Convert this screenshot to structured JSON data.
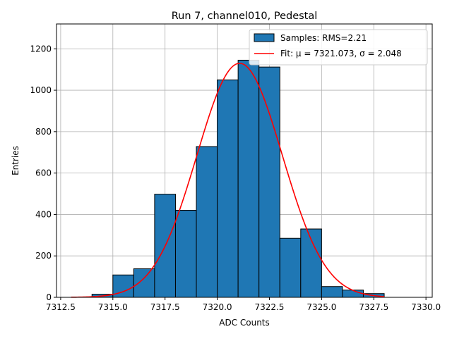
{
  "chart_data": {
    "type": "bar",
    "title": "Run 7, channel010, Pedestal",
    "xlabel": "ADC Counts",
    "ylabel": "Entries",
    "xlim": [
      7312.3,
      7330.3
    ],
    "ylim": [
      0,
      1320
    ],
    "xticks": [
      7312.5,
      7315.0,
      7317.5,
      7320.0,
      7322.5,
      7325.0,
      7327.5,
      7330.0
    ],
    "xtick_labels": [
      "7312.5",
      "7315.0",
      "7317.5",
      "7320.0",
      "7322.5",
      "7325.0",
      "7327.5",
      "7330.0"
    ],
    "yticks": [
      0,
      200,
      400,
      600,
      800,
      1000,
      1200
    ],
    "ytick_labels": [
      "0",
      "200",
      "400",
      "600",
      "800",
      "1000",
      "1200"
    ],
    "grid": true,
    "legend_position": "top-right",
    "bins": [
      {
        "x0": 7314,
        "x1": 7315,
        "value": 15
      },
      {
        "x0": 7315,
        "x1": 7316,
        "value": 108
      },
      {
        "x0": 7316,
        "x1": 7317,
        "value": 138
      },
      {
        "x0": 7317,
        "x1": 7318,
        "value": 498
      },
      {
        "x0": 7318,
        "x1": 7319,
        "value": 420
      },
      {
        "x0": 7319,
        "x1": 7320,
        "value": 728
      },
      {
        "x0": 7320,
        "x1": 7321,
        "value": 1050
      },
      {
        "x0": 7321,
        "x1": 7322,
        "value": 1145
      },
      {
        "x0": 7322,
        "x1": 7323,
        "value": 1112
      },
      {
        "x0": 7323,
        "x1": 7324,
        "value": 285
      },
      {
        "x0": 7324,
        "x1": 7325,
        "value": 330
      },
      {
        "x0": 7325,
        "x1": 7326,
        "value": 52
      },
      {
        "x0": 7326,
        "x1": 7327,
        "value": 35
      },
      {
        "x0": 7327,
        "x1": 7328,
        "value": 18
      }
    ],
    "fit": {
      "mu": 7321.073,
      "sigma": 2.048,
      "amplitude": 1130,
      "x_range": [
        7313,
        7328
      ]
    },
    "series": [
      {
        "name": "Samples: RMS=2.21",
        "kind": "histogram",
        "color": "#1f77b4",
        "edge_color": "#000000"
      },
      {
        "name": "Fit: μ = 7321.073, σ = 2.048",
        "kind": "line",
        "color": "#ff0000"
      }
    ]
  }
}
